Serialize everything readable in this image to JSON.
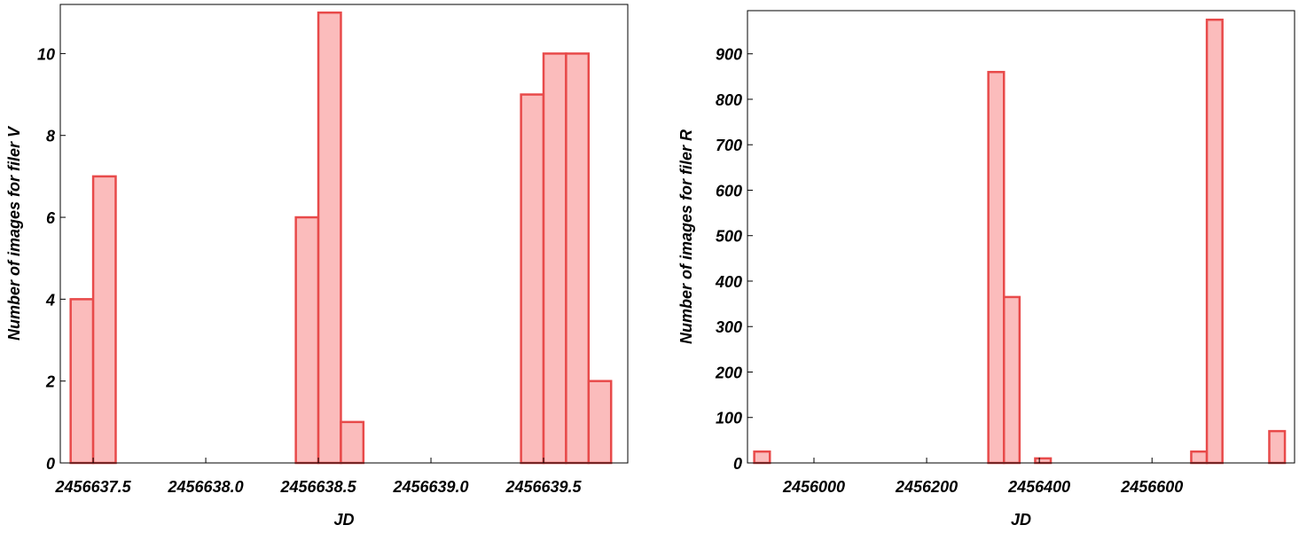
{
  "chart_data": [
    {
      "type": "histogram",
      "xlabel": "JD",
      "ylabel": "Number of images for filer V",
      "bins": [
        2456637.4,
        2456637.5,
        2456637.6,
        2456637.7,
        2456637.8,
        2456637.9,
        2456638.0,
        2456638.1,
        2456638.2,
        2456638.3,
        2456638.4,
        2456638.5,
        2456638.6,
        2456638.7,
        2456638.8,
        2456638.9,
        2456639.0,
        2456639.1,
        2456639.2,
        2456639.3,
        2456639.4,
        2456639.5,
        2456639.6,
        2456639.7,
        2456639.8
      ],
      "values": [
        4,
        7,
        0,
        0,
        0,
        0,
        0,
        0,
        0,
        0,
        6,
        11,
        1,
        0,
        0,
        0,
        0,
        0,
        0,
        0,
        9,
        10,
        10,
        2
      ],
      "color": "#fbbcbc",
      "edgecolor": "#e84a4a",
      "xlim": [
        2456637.354,
        2456639.874
      ],
      "ylim": [
        0,
        11.2
      ],
      "xticks": [
        2456637.5,
        {
          "value": 2456638,
          "label": "2456638.0"
        },
        2456638.5,
        {
          "value": 2456639,
          "label": "2456639.0"
        },
        2456639.5
      ],
      "yticks": [
        0,
        2,
        4,
        6,
        8,
        10
      ]
    },
    {
      "type": "histogram",
      "xlabel": "JD",
      "ylabel": "Number of images for filer R",
      "bins": [
        2455894.0,
        2455921.7,
        2455949.4,
        2455977.1,
        2456004.8,
        2456032.5,
        2456060.2,
        2456087.9,
        2456115.6,
        2456143.3,
        2456171.0,
        2456198.7,
        2456226.4,
        2456254.1,
        2456281.8,
        2456309.5,
        2456337.2,
        2456364.9,
        2456392.6,
        2456420.3,
        2456448.0,
        2456475.7,
        2456503.4,
        2456531.1,
        2456558.8,
        2456586.5,
        2456614.2,
        2456641.9,
        2456669.6,
        2456697.3,
        2456725.0,
        2456752.7,
        2456780.4,
        2456808.1,
        2456835.8
      ],
      "values": [
        25,
        0,
        0,
        0,
        0,
        0,
        0,
        0,
        0,
        0,
        0,
        0,
        0,
        0,
        0,
        860,
        365,
        0,
        10,
        0,
        0,
        0,
        0,
        0,
        0,
        0,
        0,
        0,
        25,
        975,
        0,
        0,
        0,
        70
      ],
      "color": "#fbbcbc",
      "edgecolor": "#e84a4a",
      "xlim": [
        2455882,
        2456853
      ],
      "ylim": [
        0,
        995
      ],
      "xticks": [
        2456000,
        2456200,
        2456400,
        2456600
      ],
      "yticks": [
        0,
        100,
        200,
        300,
        400,
        500,
        600,
        700,
        800,
        900
      ]
    }
  ]
}
